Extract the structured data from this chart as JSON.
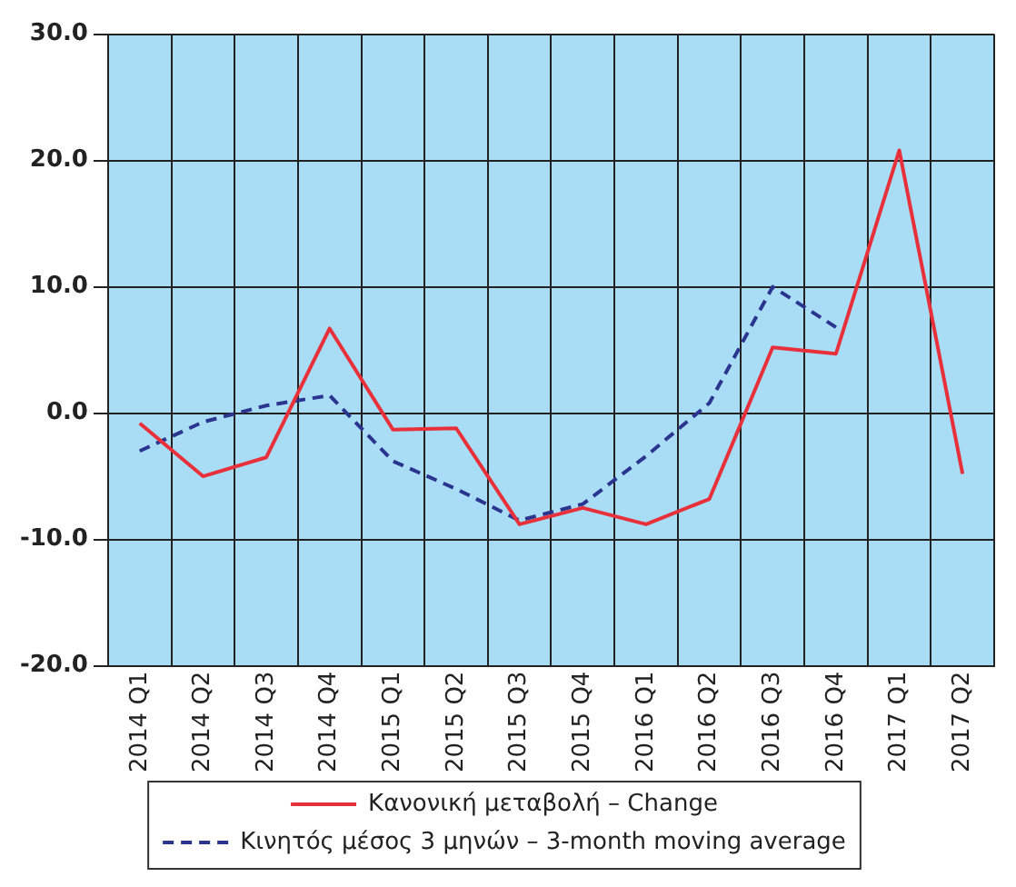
{
  "chart_data": {
    "type": "line",
    "categories": [
      "2014 Q1",
      "2014 Q2",
      "2014 Q3",
      "2014 Q4",
      "2015 Q1",
      "2015 Q2",
      "2015 Q3",
      "2015 Q4",
      "2016 Q1",
      "2016 Q2",
      "2016 Q3",
      "2016 Q4",
      "2017 Q1",
      "2017 Q2"
    ],
    "series": [
      {
        "name": "Κανονική μεταβολή – Change",
        "color": "#e8303a",
        "line_style": "solid",
        "values": [
          -0.8,
          -5.0,
          -3.5,
          6.7,
          -1.3,
          -1.2,
          -8.8,
          -7.5,
          -8.8,
          -6.8,
          5.2,
          4.7,
          20.8,
          -4.8
        ]
      },
      {
        "name": "Κινητός μέσος 3 μηνών – 3-month moving average",
        "color": "#2b3590",
        "line_style": "dashed",
        "values": [
          -3.0,
          -0.7,
          0.6,
          1.4,
          -3.8,
          -6.0,
          -8.5,
          -7.2,
          -3.4,
          0.8,
          10.0,
          6.8,
          null,
          null
        ]
      }
    ],
    "ylim": [
      -20,
      30
    ],
    "yticks": [
      {
        "value": -20,
        "label": "-20.0"
      },
      {
        "value": -10,
        "label": "-10.0"
      },
      {
        "value": 0,
        "label": "0.0"
      },
      {
        "value": 10,
        "label": "10.0"
      },
      {
        "value": 20,
        "label": "20.0"
      },
      {
        "value": 30,
        "label": "30.0"
      }
    ],
    "grid": true,
    "legend": "bottom",
    "marker": "none"
  }
}
